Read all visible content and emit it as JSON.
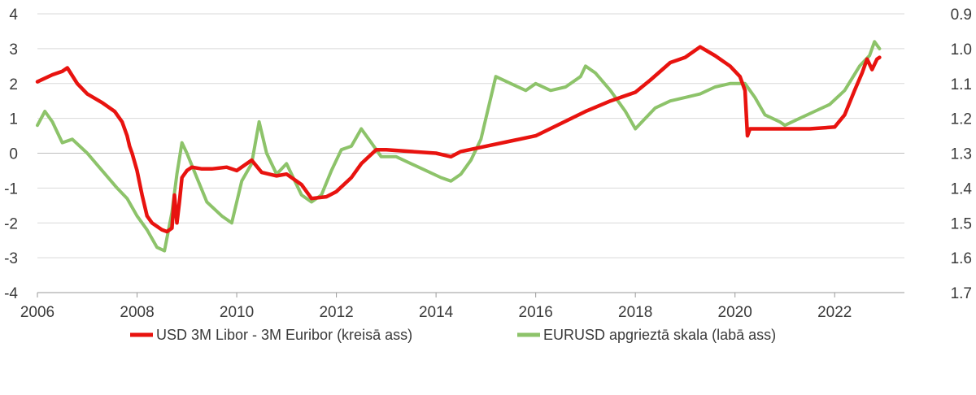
{
  "chart_data": {
    "type": "line",
    "title": "",
    "xlabel": "",
    "ylabel_left": "",
    "ylabel_right": "",
    "x_ticks": [
      "2006",
      "2008",
      "2010",
      "2012",
      "2014",
      "2016",
      "2018",
      "2020",
      "2022"
    ],
    "xlim": [
      2006,
      2023.4
    ],
    "left_axis": {
      "ticks": [
        "4",
        "3",
        "2",
        "1",
        "0",
        "-1",
        "-2",
        "-3",
        "-4"
      ],
      "ylim": [
        -4,
        4
      ]
    },
    "right_axis": {
      "ticks": [
        "0.9",
        "1.0",
        "1.1",
        "1.2",
        "1.3",
        "1.4",
        "1.5",
        "1.6",
        "1.7"
      ],
      "ylim": [
        1.7,
        0.9
      ],
      "inverted": true
    },
    "grid": "horizontal",
    "legend_position": "bottom",
    "series": [
      {
        "name": "USD 3M Libor - 3M Euribor (kreisā ass)",
        "axis": "left",
        "color": "#e8130f",
        "x": [
          2006.0,
          2006.3,
          2006.5,
          2006.6,
          2006.8,
          2007.0,
          2007.3,
          2007.55,
          2007.6,
          2007.7,
          2007.8,
          2007.85,
          2007.9,
          2008.0,
          2008.1,
          2008.2,
          2008.3,
          2008.4,
          2008.5,
          2008.6,
          2008.7,
          2008.75,
          2008.8,
          2008.85,
          2008.9,
          2009.0,
          2009.1,
          2009.3,
          2009.5,
          2009.8,
          2010.0,
          2010.3,
          2010.5,
          2010.8,
          2011.0,
          2011.3,
          2011.5,
          2011.8,
          2012.0,
          2012.3,
          2012.5,
          2012.8,
          2013.0,
          2013.5,
          2014.0,
          2014.3,
          2014.5,
          2015.0,
          2015.5,
          2016.0,
          2016.5,
          2017.0,
          2017.5,
          2018.0,
          2018.3,
          2018.7,
          2019.0,
          2019.3,
          2019.6,
          2019.9,
          2020.1,
          2020.2,
          2020.25,
          2020.3,
          2020.5,
          2020.8,
          2021.0,
          2021.5,
          2022.0,
          2022.2,
          2022.4,
          2022.55,
          2022.65,
          2022.75,
          2022.85,
          2022.9
        ],
        "values": [
          2.05,
          2.25,
          2.35,
          2.45,
          2.0,
          1.7,
          1.45,
          1.2,
          1.1,
          0.9,
          0.5,
          0.2,
          0.0,
          -0.5,
          -1.2,
          -1.8,
          -2.0,
          -2.1,
          -2.2,
          -2.25,
          -2.15,
          -1.2,
          -2.0,
          -1.4,
          -0.7,
          -0.5,
          -0.4,
          -0.45,
          -0.45,
          -0.4,
          -0.5,
          -0.2,
          -0.55,
          -0.65,
          -0.6,
          -0.9,
          -1.3,
          -1.25,
          -1.1,
          -0.7,
          -0.3,
          0.1,
          0.1,
          0.05,
          0.0,
          -0.1,
          0.05,
          0.2,
          0.35,
          0.5,
          0.85,
          1.2,
          1.5,
          1.75,
          2.1,
          2.6,
          2.75,
          3.05,
          2.8,
          2.5,
          2.2,
          1.8,
          0.5,
          0.7,
          0.7,
          0.7,
          0.7,
          0.7,
          0.75,
          1.1,
          1.8,
          2.3,
          2.7,
          2.4,
          2.7,
          2.75
        ]
      },
      {
        "name": "EURUSD apgrieztā skala (labā ass)",
        "axis": "right",
        "color": "#8dc36a",
        "x": [
          2006.0,
          2006.15,
          2006.3,
          2006.5,
          2006.7,
          2007.0,
          2007.3,
          2007.6,
          2007.8,
          2008.0,
          2008.2,
          2008.4,
          2008.55,
          2008.7,
          2008.8,
          2008.9,
          2009.0,
          2009.2,
          2009.4,
          2009.7,
          2009.9,
          2010.1,
          2010.3,
          2010.45,
          2010.6,
          2010.8,
          2011.0,
          2011.3,
          2011.5,
          2011.7,
          2011.9,
          2012.1,
          2012.3,
          2012.5,
          2012.7,
          2012.9,
          2013.2,
          2013.5,
          2013.8,
          2014.1,
          2014.3,
          2014.5,
          2014.7,
          2014.9,
          2015.0,
          2015.2,
          2015.5,
          2015.8,
          2016.0,
          2016.3,
          2016.6,
          2016.9,
          2017.0,
          2017.2,
          2017.5,
          2017.8,
          2018.0,
          2018.2,
          2018.4,
          2018.7,
          2019.0,
          2019.3,
          2019.6,
          2019.9,
          2020.2,
          2020.4,
          2020.6,
          2020.9,
          2021.0,
          2021.3,
          2021.6,
          2021.9,
          2022.2,
          2022.5,
          2022.7,
          2022.8,
          2022.9
        ],
        "values": [
          1.22,
          1.18,
          1.21,
          1.27,
          1.26,
          1.3,
          1.35,
          1.4,
          1.43,
          1.48,
          1.52,
          1.57,
          1.58,
          1.47,
          1.36,
          1.27,
          1.3,
          1.37,
          1.44,
          1.48,
          1.5,
          1.38,
          1.33,
          1.21,
          1.3,
          1.36,
          1.33,
          1.42,
          1.44,
          1.42,
          1.35,
          1.29,
          1.28,
          1.23,
          1.27,
          1.31,
          1.31,
          1.33,
          1.35,
          1.37,
          1.38,
          1.36,
          1.32,
          1.26,
          1.2,
          1.08,
          1.1,
          1.12,
          1.1,
          1.12,
          1.11,
          1.08,
          1.05,
          1.07,
          1.12,
          1.18,
          1.23,
          1.2,
          1.17,
          1.15,
          1.14,
          1.13,
          1.11,
          1.1,
          1.1,
          1.14,
          1.19,
          1.21,
          1.22,
          1.2,
          1.18,
          1.16,
          1.12,
          1.05,
          1.02,
          0.98,
          1.0
        ]
      }
    ]
  }
}
